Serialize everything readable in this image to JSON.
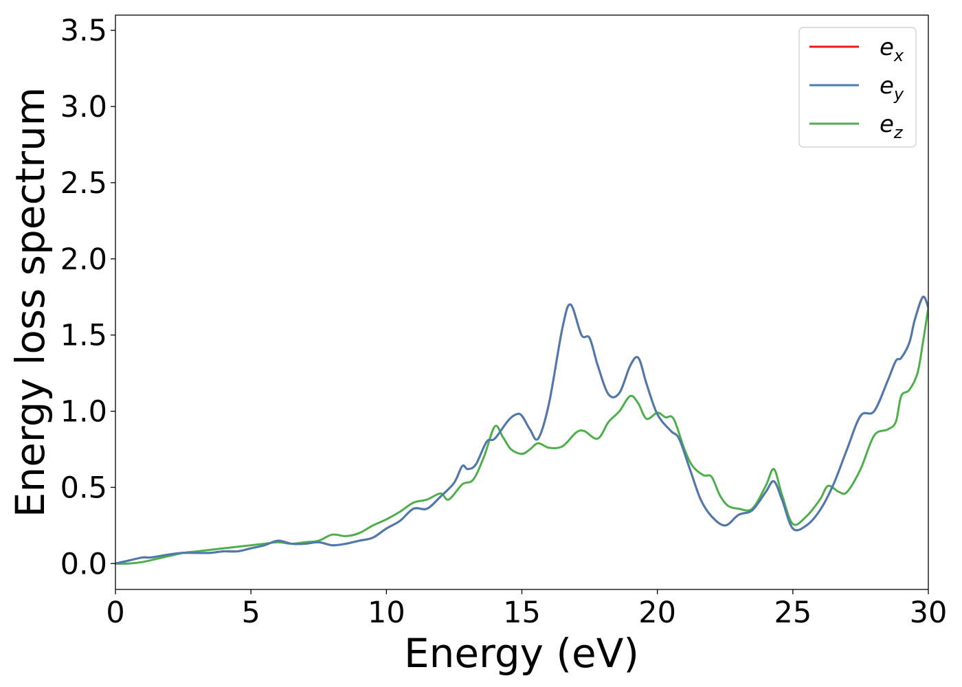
{
  "chart_data": {
    "type": "line",
    "title": "",
    "xlabel": "Energy (eV)",
    "ylabel": "Energy loss spectrum",
    "xlim": [
      0,
      30
    ],
    "ylim": [
      -0.17,
      3.6
    ],
    "xticks": [
      0,
      5,
      10,
      15,
      20,
      25,
      30
    ],
    "xtick_labels": [
      "0",
      "5",
      "10",
      "15",
      "20",
      "25",
      "30"
    ],
    "yticks": [
      0.0,
      0.5,
      1.0,
      1.5,
      2.0,
      2.5,
      3.0,
      3.5
    ],
    "ytick_labels": [
      "0.0",
      "0.5",
      "1.0",
      "1.5",
      "2.0",
      "2.5",
      "3.0",
      "3.5"
    ],
    "grid": false,
    "legend_position": "top-right",
    "series": [
      {
        "name": "e_x",
        "legend_base": "e",
        "legend_sub": "x",
        "color": "#e41a1c",
        "x": [
          0,
          0.5,
          1.0,
          1.3,
          2.0,
          2.5,
          3.0,
          3.5,
          4.0,
          4.5,
          5.0,
          5.5,
          6.0,
          6.5,
          7.0,
          7.5,
          8.0,
          8.5,
          9.0,
          9.5,
          10.0,
          10.5,
          11.0,
          11.5,
          12.0,
          12.5,
          12.8,
          13.0,
          13.3,
          13.7,
          14.0,
          14.5,
          14.8,
          15.0,
          15.3,
          15.6,
          16.0,
          16.5,
          16.8,
          17.2,
          17.5,
          17.8,
          18.2,
          18.6,
          19.0,
          19.3,
          19.6,
          20.0,
          20.5,
          20.8,
          21.2,
          21.6,
          22.0,
          22.5,
          23.0,
          23.5,
          24.0,
          24.3,
          24.6,
          25.0,
          25.5,
          26.0,
          26.5,
          27.0,
          27.5,
          28.0,
          28.5,
          28.8,
          29.0,
          29.3,
          29.5,
          29.8,
          30.0
        ],
        "y": [
          0.0,
          0.02,
          0.04,
          0.04,
          0.06,
          0.07,
          0.07,
          0.07,
          0.08,
          0.08,
          0.1,
          0.12,
          0.15,
          0.13,
          0.13,
          0.14,
          0.12,
          0.13,
          0.15,
          0.17,
          0.23,
          0.28,
          0.36,
          0.36,
          0.44,
          0.53,
          0.64,
          0.62,
          0.65,
          0.8,
          0.82,
          0.94,
          0.98,
          0.97,
          0.88,
          0.82,
          1.05,
          1.55,
          1.7,
          1.5,
          1.48,
          1.3,
          1.11,
          1.12,
          1.3,
          1.35,
          1.18,
          0.98,
          0.87,
          0.82,
          0.62,
          0.42,
          0.31,
          0.25,
          0.32,
          0.35,
          0.47,
          0.54,
          0.42,
          0.23,
          0.25,
          0.35,
          0.52,
          0.75,
          0.97,
          1.0,
          1.2,
          1.33,
          1.35,
          1.45,
          1.6,
          1.75,
          1.68
        ]
      },
      {
        "name": "e_y",
        "legend_base": "e",
        "legend_sub": "y",
        "color": "#4a7bb0",
        "x": [
          0,
          0.5,
          1.0,
          1.3,
          2.0,
          2.5,
          3.0,
          3.5,
          4.0,
          4.5,
          5.0,
          5.5,
          6.0,
          6.5,
          7.0,
          7.5,
          8.0,
          8.5,
          9.0,
          9.5,
          10.0,
          10.5,
          11.0,
          11.5,
          12.0,
          12.5,
          12.8,
          13.0,
          13.3,
          13.7,
          14.0,
          14.5,
          14.8,
          15.0,
          15.3,
          15.6,
          16.0,
          16.5,
          16.8,
          17.2,
          17.5,
          17.8,
          18.2,
          18.6,
          19.0,
          19.3,
          19.6,
          20.0,
          20.5,
          20.8,
          21.2,
          21.6,
          22.0,
          22.5,
          23.0,
          23.5,
          24.0,
          24.3,
          24.6,
          25.0,
          25.5,
          26.0,
          26.5,
          27.0,
          27.5,
          28.0,
          28.5,
          28.8,
          29.0,
          29.3,
          29.5,
          29.8,
          30.0
        ],
        "y": [
          0.0,
          0.02,
          0.04,
          0.04,
          0.06,
          0.07,
          0.07,
          0.07,
          0.08,
          0.08,
          0.1,
          0.12,
          0.15,
          0.13,
          0.13,
          0.14,
          0.12,
          0.13,
          0.15,
          0.17,
          0.23,
          0.28,
          0.36,
          0.36,
          0.44,
          0.53,
          0.64,
          0.62,
          0.65,
          0.8,
          0.82,
          0.94,
          0.98,
          0.97,
          0.88,
          0.82,
          1.05,
          1.55,
          1.7,
          1.5,
          1.48,
          1.3,
          1.11,
          1.12,
          1.3,
          1.35,
          1.18,
          0.98,
          0.87,
          0.82,
          0.62,
          0.42,
          0.31,
          0.25,
          0.32,
          0.35,
          0.47,
          0.54,
          0.42,
          0.23,
          0.25,
          0.35,
          0.52,
          0.75,
          0.97,
          1.0,
          1.2,
          1.33,
          1.35,
          1.45,
          1.6,
          1.75,
          1.68
        ]
      },
      {
        "name": "e_z",
        "legend_base": "e",
        "legend_sub": "z",
        "color": "#4daf4a",
        "x": [
          0,
          0.5,
          1.0,
          1.5,
          2.0,
          2.5,
          3.0,
          3.5,
          4.0,
          4.5,
          5.0,
          5.5,
          6.0,
          6.5,
          7.0,
          7.5,
          8.0,
          8.5,
          9.0,
          9.5,
          10.0,
          10.5,
          11.0,
          11.5,
          12.0,
          12.3,
          12.8,
          13.2,
          13.6,
          14.0,
          14.3,
          14.6,
          15.0,
          15.3,
          15.6,
          16.0,
          16.5,
          17.0,
          17.3,
          17.8,
          18.2,
          18.6,
          19.0,
          19.3,
          19.6,
          20.0,
          20.3,
          20.6,
          21.0,
          21.3,
          21.7,
          22.0,
          22.3,
          22.6,
          23.0,
          23.5,
          24.0,
          24.3,
          24.6,
          25.0,
          25.5,
          26.0,
          26.3,
          26.7,
          27.0,
          27.5,
          28.0,
          28.5,
          28.8,
          29.0,
          29.3,
          29.6,
          29.8,
          30.0
        ],
        "y": [
          0.0,
          0.0,
          0.01,
          0.03,
          0.05,
          0.07,
          0.08,
          0.09,
          0.1,
          0.11,
          0.12,
          0.13,
          0.14,
          0.13,
          0.14,
          0.15,
          0.19,
          0.18,
          0.2,
          0.25,
          0.29,
          0.34,
          0.4,
          0.42,
          0.46,
          0.42,
          0.52,
          0.55,
          0.7,
          0.9,
          0.83,
          0.75,
          0.72,
          0.75,
          0.79,
          0.76,
          0.77,
          0.86,
          0.87,
          0.82,
          0.93,
          1.0,
          1.1,
          1.05,
          0.95,
          0.99,
          0.96,
          0.95,
          0.75,
          0.64,
          0.58,
          0.57,
          0.45,
          0.38,
          0.36,
          0.36,
          0.51,
          0.62,
          0.45,
          0.26,
          0.31,
          0.42,
          0.51,
          0.47,
          0.47,
          0.62,
          0.84,
          0.88,
          0.93,
          1.1,
          1.14,
          1.25,
          1.45,
          1.68
        ]
      }
    ]
  }
}
